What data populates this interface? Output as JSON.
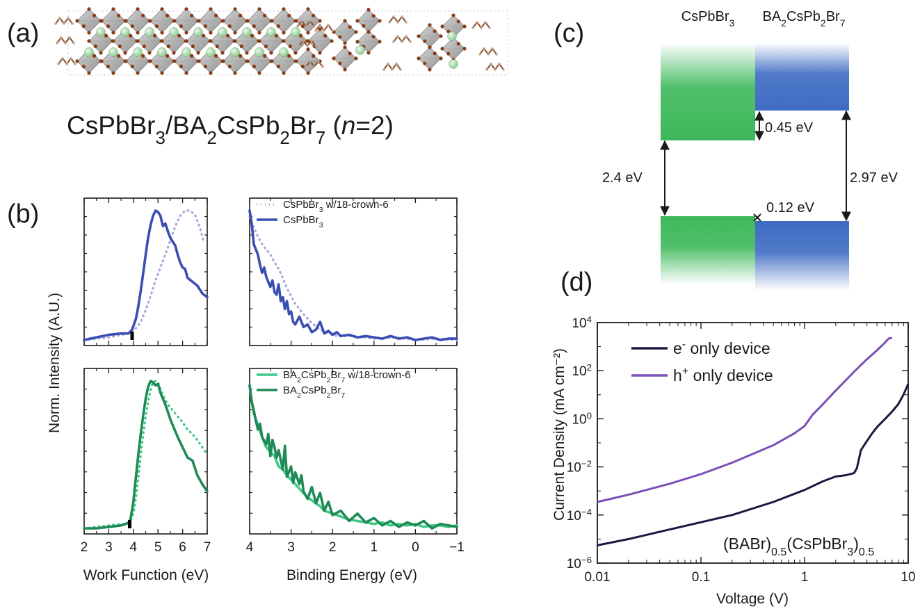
{
  "panels": {
    "a": {
      "label": "(a)",
      "formula_parts": [
        {
          "t": "CsPbBr"
        },
        {
          "t": "3",
          "s": "sub"
        },
        {
          "t": "/BA"
        },
        {
          "t": "2",
          "s": "sub"
        },
        {
          "t": "CsPb"
        },
        {
          "t": "2",
          "s": "sub"
        },
        {
          "t": "Br"
        },
        {
          "t": "7",
          "s": "sub"
        },
        {
          "t": " ("
        },
        {
          "t": "n",
          "s": "it"
        },
        {
          "t": "=2)"
        }
      ]
    },
    "b": {
      "label": "(b)",
      "ylabel": "Norm. Intensity (A.U.)",
      "xlabel_left": "Work Function (eV)",
      "xlabel_right": "Binding Energy (eV)",
      "left_xticks": [
        2,
        3,
        4,
        5,
        6,
        7
      ],
      "right_xticks": [
        4,
        3,
        2,
        1,
        0,
        -1
      ],
      "right_tick_labels": [
        "4",
        "3",
        "2",
        "1",
        "0",
        "−1"
      ]
    },
    "c": {
      "label": "(c)",
      "col1_parts": [
        {
          "t": "CsPbBr"
        },
        {
          "t": "3",
          "s": "sub"
        }
      ],
      "col2_parts": [
        {
          "t": "BA"
        },
        {
          "t": "2",
          "s": "sub"
        },
        {
          "t": "CsPb"
        },
        {
          "t": "2",
          "s": "sub"
        },
        {
          "t": "Br"
        },
        {
          "t": "7",
          "s": "sub"
        }
      ],
      "gap_left": "2.4 eV",
      "gap_right": "2.97 eV",
      "offset_cb": "0.45 eV",
      "offset_vb": "0.12 eV",
      "colors": {
        "green": "#3db85a",
        "blue": "#3e6bc2"
      }
    },
    "d": {
      "label": "(d)",
      "annotation_parts": [
        {
          "t": "(BABr)"
        },
        {
          "t": "0.5",
          "s": "sub"
        },
        {
          "t": "(CsPbBr"
        },
        {
          "t": "3",
          "s": "sub"
        },
        {
          "t": ")"
        },
        {
          "t": "0.5",
          "s": "sub"
        }
      ],
      "legend_e_parts": [
        {
          "t": "e"
        },
        {
          "t": "-",
          "s": "sup"
        },
        {
          "t": " only device"
        }
      ],
      "legend_h_parts": [
        {
          "t": "h"
        },
        {
          "t": "+",
          "s": "sup"
        },
        {
          "t": " only device"
        }
      ]
    }
  },
  "chart_data": [
    {
      "type": "line",
      "panel": "b-top-left",
      "xlim": [
        2,
        7
      ],
      "series": [
        {
          "name": "CsPbBr3 w/18-crown-6",
          "style": "dotted",
          "color": "#a9a8dc",
          "x": [
            2.0,
            3.0,
            3.8,
            4.1,
            4.3,
            4.5,
            4.7,
            4.9,
            5.1,
            5.3,
            5.5,
            5.7,
            5.9,
            6.1,
            6.3,
            6.5,
            6.7,
            6.85
          ],
          "y": [
            0.0,
            0.02,
            0.05,
            0.09,
            0.14,
            0.23,
            0.34,
            0.46,
            0.56,
            0.66,
            0.77,
            0.88,
            0.96,
            1.0,
            1.0,
            0.97,
            0.87,
            0.76
          ]
        },
        {
          "name": "CsPbBr3",
          "style": "solid",
          "color": "#3a4db3",
          "x": [
            2.0,
            2.5,
            3.0,
            3.5,
            3.8,
            3.95,
            4.1,
            4.2,
            4.3,
            4.4,
            4.5,
            4.6,
            4.7,
            4.8,
            4.9,
            5.0,
            5.1,
            5.2,
            5.3,
            5.4,
            5.5,
            5.6,
            5.7,
            5.8,
            5.9,
            6.0,
            6.1,
            6.2,
            6.4,
            6.6,
            6.8,
            7.0
          ],
          "y": [
            0.0,
            0.02,
            0.04,
            0.05,
            0.05,
            0.08,
            0.16,
            0.26,
            0.38,
            0.52,
            0.66,
            0.79,
            0.89,
            0.96,
            1.0,
            0.99,
            0.96,
            0.88,
            0.9,
            0.84,
            0.79,
            0.76,
            0.73,
            0.66,
            0.6,
            0.56,
            0.55,
            0.48,
            0.45,
            0.42,
            0.36,
            0.33
          ]
        }
      ]
    },
    {
      "type": "line",
      "panel": "b-top-right",
      "xlim": [
        4,
        -1
      ],
      "series": [
        {
          "name": "CsPbBr3 w/18-crown-6",
          "style": "dotted",
          "color": "#a9a8dc",
          "x": [
            4.0,
            3.9,
            3.8,
            3.7,
            3.6,
            3.5,
            3.4,
            3.3,
            3.2,
            3.1,
            3.0,
            2.9,
            2.7,
            2.5,
            2.3,
            2.1,
            1.9,
            1.5,
            1.0,
            0.5,
            0.0,
            -0.5,
            -1.0
          ],
          "y": [
            0.95,
            0.87,
            0.8,
            0.74,
            0.7,
            0.66,
            0.6,
            0.55,
            0.48,
            0.4,
            0.34,
            0.28,
            0.2,
            0.13,
            0.08,
            0.05,
            0.03,
            0.03,
            0.01,
            0.02,
            0.0,
            0.01,
            0.0
          ]
        },
        {
          "name": "CsPbBr3",
          "style": "solid",
          "color": "#3a4db3",
          "x": [
            4.0,
            3.95,
            3.9,
            3.85,
            3.8,
            3.75,
            3.7,
            3.65,
            3.6,
            3.55,
            3.5,
            3.45,
            3.4,
            3.35,
            3.3,
            3.25,
            3.2,
            3.15,
            3.1,
            3.05,
            3.0,
            2.95,
            2.9,
            2.8,
            2.7,
            2.6,
            2.5,
            2.4,
            2.3,
            2.2,
            2.1,
            2.0,
            1.9,
            1.8,
            1.6,
            1.4,
            1.2,
            1.0,
            0.8,
            0.6,
            0.4,
            0.2,
            0.0,
            -0.2,
            -0.4,
            -0.6,
            -0.8,
            -1.0
          ],
          "y": [
            1.0,
            0.9,
            0.74,
            0.7,
            0.66,
            0.58,
            0.52,
            0.56,
            0.49,
            0.45,
            0.41,
            0.46,
            0.37,
            0.35,
            0.43,
            0.3,
            0.33,
            0.24,
            0.3,
            0.2,
            0.22,
            0.14,
            0.12,
            0.18,
            0.1,
            0.12,
            0.06,
            0.08,
            0.14,
            0.05,
            0.07,
            0.04,
            0.06,
            0.03,
            0.04,
            0.02,
            0.03,
            0.02,
            0.01,
            0.03,
            0.01,
            0.02,
            0.0,
            0.01,
            0.02,
            0.0,
            0.01,
            0.01
          ]
        }
      ]
    },
    {
      "type": "line",
      "panel": "b-bottom-left",
      "xlim": [
        2,
        7
      ],
      "series": [
        {
          "name": "BA2CsPb2Br7 w/18-crown-6",
          "style": "dotted",
          "color": "#3fc98a",
          "x": [
            2.0,
            3.0,
            3.6,
            3.8,
            3.9,
            4.0,
            4.1,
            4.2,
            4.3,
            4.4,
            4.5,
            4.6,
            4.7,
            4.8,
            4.9,
            5.0,
            5.1,
            5.2,
            5.4,
            5.6,
            5.8,
            6.0,
            6.2,
            6.4,
            6.6,
            6.8,
            7.0
          ],
          "y": [
            0.0,
            0.02,
            0.03,
            0.04,
            0.06,
            0.1,
            0.2,
            0.34,
            0.5,
            0.64,
            0.76,
            0.86,
            0.94,
            0.99,
            1.0,
            0.99,
            0.95,
            0.9,
            0.84,
            0.8,
            0.76,
            0.72,
            0.67,
            0.64,
            0.6,
            0.55,
            0.5
          ]
        },
        {
          "name": "BA2CsPb2Br7",
          "style": "solid",
          "color": "#1f8a55",
          "x": [
            2.0,
            2.5,
            3.0,
            3.5,
            3.85,
            3.9,
            4.0,
            4.1,
            4.2,
            4.3,
            4.4,
            4.5,
            4.6,
            4.7,
            4.8,
            4.9,
            5.0,
            5.1,
            5.2,
            5.3,
            5.4,
            5.5,
            5.6,
            5.8,
            6.0,
            6.2,
            6.4,
            6.6,
            6.8,
            7.0
          ],
          "y": [
            0.0,
            0.0,
            0.01,
            0.02,
            0.04,
            0.08,
            0.18,
            0.34,
            0.5,
            0.64,
            0.77,
            0.88,
            0.96,
            1.0,
            0.99,
            0.97,
            0.98,
            0.92,
            0.88,
            0.84,
            0.79,
            0.74,
            0.7,
            0.62,
            0.55,
            0.48,
            0.46,
            0.36,
            0.3,
            0.25
          ]
        }
      ]
    },
    {
      "type": "line",
      "panel": "b-bottom-right",
      "xlim": [
        4,
        -1
      ],
      "series": [
        {
          "name": "BA2CsPb2Br7 w/18-crown-6",
          "style": "solid",
          "color": "#3fc98a",
          "x": [
            4.0,
            3.95,
            3.9,
            3.8,
            3.7,
            3.6,
            3.5,
            3.4,
            3.3,
            3.2,
            3.1,
            3.0,
            2.9,
            2.8,
            2.7,
            2.6,
            2.5,
            2.4,
            2.3,
            2.2,
            2.0,
            1.8,
            1.6,
            1.4,
            1.2,
            1.0,
            0.8,
            0.6,
            0.4,
            0.2,
            0.0,
            -0.2,
            -0.4,
            -0.6,
            -0.8,
            -1.0
          ],
          "y": [
            0.97,
            0.86,
            0.78,
            0.7,
            0.62,
            0.55,
            0.52,
            0.49,
            0.42,
            0.4,
            0.36,
            0.33,
            0.3,
            0.27,
            0.24,
            0.21,
            0.19,
            0.17,
            0.15,
            0.12,
            0.1,
            0.08,
            0.06,
            0.05,
            0.04,
            0.03,
            0.04,
            0.02,
            0.03,
            0.02,
            0.03,
            0.01,
            0.02,
            0.02,
            0.01,
            0.02
          ]
        },
        {
          "name": "BA2CsPb2Br7",
          "style": "solid",
          "color": "#1f8a55",
          "x": [
            4.0,
            3.95,
            3.9,
            3.85,
            3.8,
            3.75,
            3.7,
            3.6,
            3.55,
            3.5,
            3.45,
            3.4,
            3.35,
            3.3,
            3.2,
            3.15,
            3.1,
            3.0,
            2.95,
            2.9,
            2.8,
            2.75,
            2.7,
            2.6,
            2.5,
            2.4,
            2.3,
            2.2,
            2.1,
            2.0,
            1.8,
            1.6,
            1.4,
            1.2,
            1.0,
            0.8,
            0.6,
            0.4,
            0.2,
            0.0,
            -0.2,
            -0.4,
            -0.6,
            -0.8,
            -1.0
          ],
          "y": [
            0.97,
            0.86,
            0.8,
            0.73,
            0.67,
            0.71,
            0.62,
            0.57,
            0.64,
            0.49,
            0.6,
            0.55,
            0.48,
            0.53,
            0.4,
            0.56,
            0.35,
            0.42,
            0.31,
            0.38,
            0.3,
            0.36,
            0.25,
            0.2,
            0.28,
            0.17,
            0.24,
            0.12,
            0.18,
            0.09,
            0.12,
            0.05,
            0.1,
            0.04,
            0.07,
            0.02,
            0.05,
            0.01,
            0.04,
            0.02,
            0.05,
            0.0,
            0.03,
            0.02,
            0.01
          ]
        }
      ]
    },
    {
      "type": "line",
      "panel": "d",
      "xscale": "log",
      "yscale": "log",
      "xlim": [
        0.01,
        10
      ],
      "ylim": [
        1e-06,
        10000.0
      ],
      "xlabel": "Voltage (V)",
      "ylabel": "Current Density (mA cm⁻²)",
      "xticks": [
        0.01,
        0.1,
        1,
        10
      ],
      "xtick_labels": [
        "0.01",
        "0.1",
        "1",
        "10"
      ],
      "yticks": [
        -6,
        -4,
        -2,
        0,
        2,
        4
      ],
      "series": [
        {
          "name": "e⁻ only device",
          "color": "#1e1640",
          "x": [
            0.01,
            0.02,
            0.05,
            0.1,
            0.2,
            0.5,
            1.0,
            1.5,
            2.0,
            2.5,
            3.0,
            3.2,
            3.5,
            4.0,
            4.5,
            5.0,
            6.0,
            7.0,
            8.0,
            9.0,
            10.0
          ],
          "y": [
            5.5e-06,
            1e-05,
            2.5e-05,
            5e-05,
            0.0001,
            0.00035,
            0.0011,
            0.0025,
            0.004,
            0.0045,
            0.0055,
            0.009,
            0.05,
            0.12,
            0.25,
            0.45,
            1.0,
            2.0,
            4.0,
            10,
            28
          ]
        },
        {
          "name": "h⁺ only device",
          "color": "#7a4fb8",
          "x": [
            0.01,
            0.02,
            0.05,
            0.1,
            0.2,
            0.5,
            0.8,
            1.0,
            1.2,
            1.5,
            2.0,
            2.5,
            3.0,
            4.0,
            5.0,
            6.0,
            6.5,
            7.0
          ],
          "y": [
            0.00035,
            0.0007,
            0.002,
            0.005,
            0.015,
            0.08,
            0.25,
            0.5,
            1.5,
            4.0,
            15,
            40,
            90,
            300,
            700,
            1500,
            2200,
            2300
          ]
        }
      ]
    }
  ]
}
